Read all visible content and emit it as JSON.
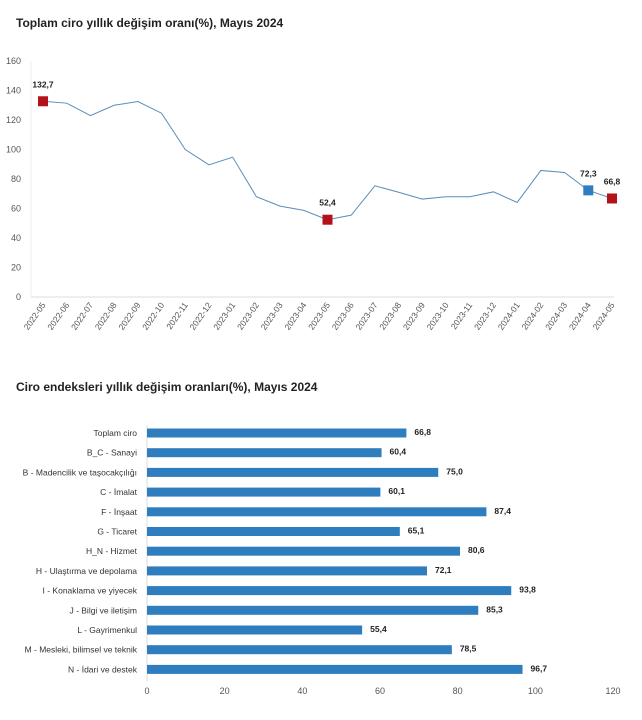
{
  "chart_data": [
    {
      "type": "line",
      "title": "Toplam ciro yıllık değişim oranı(%), Mayıs 2024",
      "x": [
        "2022-05",
        "2022-06",
        "2022-07",
        "2022-08",
        "2022-09",
        "2022-10",
        "2022-11",
        "2022-12",
        "2023-01",
        "2023-02",
        "2023-03",
        "2023-04",
        "2023-05",
        "2023-06",
        "2023-07",
        "2023-08",
        "2023-09",
        "2023-10",
        "2023-11",
        "2023-12",
        "2024-01",
        "2024-02",
        "2024-03",
        "2024-04",
        "2024-05"
      ],
      "values": [
        132.7,
        131.4,
        123,
        130,
        132.5,
        124.6,
        100,
        89.6,
        94.8,
        68,
        61.6,
        58.7,
        52.4,
        55.5,
        75.4,
        71,
        66.4,
        68,
        68,
        71.3,
        64.1,
        85.8,
        84.4,
        72.3,
        66.8
      ],
      "ylim": [
        0,
        160
      ],
      "yticks": [
        0,
        20,
        40,
        60,
        80,
        100,
        120,
        140,
        160
      ],
      "line_color": "#5b8db8",
      "highlighted": [
        {
          "x": "2022-05",
          "label": "132,7",
          "color": "#b3121b"
        },
        {
          "x": "2023-05",
          "label": "52,4",
          "color": "#b3121b"
        },
        {
          "x": "2024-04",
          "label": "72,3",
          "color": "#2e7dbe"
        },
        {
          "x": "2024-05",
          "label": "66,8",
          "color": "#b3121b"
        }
      ]
    },
    {
      "type": "bar",
      "orientation": "horizontal",
      "title": "Ciro endeksleri yıllık değişim oranları(%), Mayıs 2024",
      "categories": [
        "Toplam ciro",
        "B_C - Sanayi",
        "B - Madencilik ve taşocakçılığı",
        "C - İmalat",
        "F - İnşaat",
        "G - Ticaret",
        "H_N - Hizmet",
        "H - Ulaştırma ve depolama",
        "I - Konaklama ve yiyecek",
        "J - Bilgi ve iletişim",
        "L - Gayrimenkul",
        "M - Mesleki, bilimsel ve teknik",
        "N - İdari ve destek"
      ],
      "values": [
        66.8,
        60.4,
        75.0,
        60.1,
        87.4,
        65.1,
        80.6,
        72.1,
        93.8,
        85.3,
        55.4,
        78.5,
        96.7
      ],
      "labels": [
        "66,8",
        "60,4",
        "75,0",
        "60,1",
        "87,4",
        "65,1",
        "80,6",
        "72,1",
        "93,8",
        "85,3",
        "55,4",
        "78,5",
        "96,7"
      ],
      "xlim": [
        0,
        120
      ],
      "xticks": [
        0,
        20,
        40,
        60,
        80,
        100,
        120
      ],
      "bar_color": "#2e7dbe"
    }
  ]
}
